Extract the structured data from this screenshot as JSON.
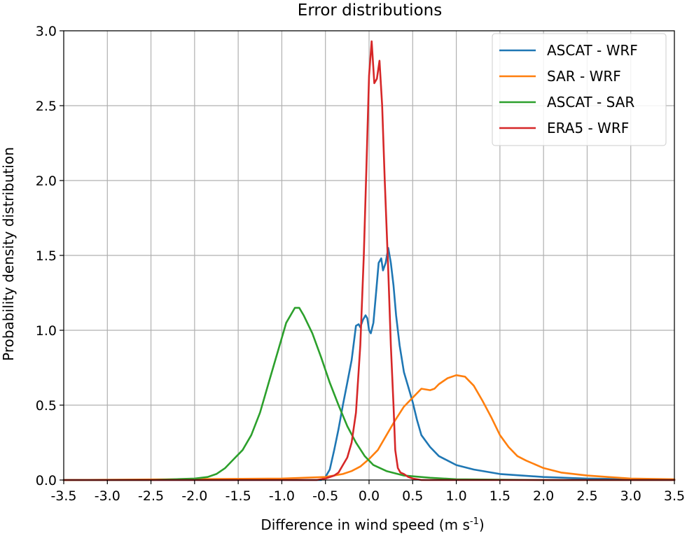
{
  "chart_data": {
    "type": "line",
    "title": "Error distributions",
    "xlabel_main": "Difference in wind speed (m s",
    "xlabel_sup": "-1",
    "xlabel_close": ")",
    "ylabel": "Probability density distribution",
    "xlim": [
      -3.5,
      3.5
    ],
    "ylim": [
      0,
      3.0
    ],
    "xticks": [
      -3.5,
      -3.0,
      -2.5,
      -2.0,
      -1.5,
      -1.0,
      -0.5,
      0.0,
      0.5,
      1.0,
      1.5,
      2.0,
      2.5,
      3.0,
      3.5
    ],
    "xtick_labels": [
      "-3.5",
      "-3.0",
      "-2.5",
      "-2.0",
      "-1.5",
      "-1.0",
      "-0.5",
      "0.0",
      "0.5",
      "1.0",
      "1.5",
      "2.0",
      "2.5",
      "3.0",
      "3.5"
    ],
    "yticks": [
      0.0,
      0.5,
      1.0,
      1.5,
      2.0,
      2.5,
      3.0
    ],
    "ytick_labels": [
      "0.0",
      "0.5",
      "1.0",
      "1.5",
      "2.0",
      "2.5",
      "3.0"
    ],
    "grid": true,
    "legend_position": "top-right",
    "series": [
      {
        "name": "ASCAT - WRF",
        "color": "#1f77b4",
        "points": [
          [
            -3.5,
            0
          ],
          [
            -0.55,
            0.0
          ],
          [
            -0.5,
            0.02
          ],
          [
            -0.45,
            0.07
          ],
          [
            -0.4,
            0.2
          ],
          [
            -0.35,
            0.34
          ],
          [
            -0.3,
            0.5
          ],
          [
            -0.25,
            0.65
          ],
          [
            -0.2,
            0.8
          ],
          [
            -0.15,
            1.03
          ],
          [
            -0.12,
            1.04
          ],
          [
            -0.1,
            1.02
          ],
          [
            -0.07,
            1.07
          ],
          [
            -0.04,
            1.1
          ],
          [
            -0.02,
            1.08
          ],
          [
            0.0,
            1.0
          ],
          [
            0.02,
            0.98
          ],
          [
            0.05,
            1.05
          ],
          [
            0.08,
            1.25
          ],
          [
            0.11,
            1.45
          ],
          [
            0.14,
            1.48
          ],
          [
            0.16,
            1.4
          ],
          [
            0.19,
            1.45
          ],
          [
            0.22,
            1.55
          ],
          [
            0.25,
            1.45
          ],
          [
            0.28,
            1.3
          ],
          [
            0.31,
            1.1
          ],
          [
            0.35,
            0.9
          ],
          [
            0.4,
            0.72
          ],
          [
            0.45,
            0.62
          ],
          [
            0.5,
            0.52
          ],
          [
            0.55,
            0.4
          ],
          [
            0.6,
            0.3
          ],
          [
            0.7,
            0.22
          ],
          [
            0.8,
            0.16
          ],
          [
            0.9,
            0.13
          ],
          [
            1.0,
            0.1
          ],
          [
            1.2,
            0.07
          ],
          [
            1.5,
            0.04
          ],
          [
            2.0,
            0.02
          ],
          [
            2.5,
            0.01
          ],
          [
            3.0,
            0.005
          ],
          [
            3.5,
            0.002
          ]
        ]
      },
      {
        "name": "SAR - WRF",
        "color": "#ff7f0e",
        "points": [
          [
            -3.5,
            0.0
          ],
          [
            -1.0,
            0.01
          ],
          [
            -0.5,
            0.02
          ],
          [
            -0.3,
            0.04
          ],
          [
            -0.2,
            0.06
          ],
          [
            -0.1,
            0.09
          ],
          [
            0.0,
            0.14
          ],
          [
            0.1,
            0.2
          ],
          [
            0.2,
            0.3
          ],
          [
            0.3,
            0.4
          ],
          [
            0.4,
            0.49
          ],
          [
            0.5,
            0.55
          ],
          [
            0.6,
            0.61
          ],
          [
            0.7,
            0.6
          ],
          [
            0.75,
            0.61
          ],
          [
            0.8,
            0.64
          ],
          [
            0.9,
            0.68
          ],
          [
            1.0,
            0.7
          ],
          [
            1.1,
            0.69
          ],
          [
            1.2,
            0.63
          ],
          [
            1.3,
            0.53
          ],
          [
            1.4,
            0.42
          ],
          [
            1.5,
            0.3
          ],
          [
            1.6,
            0.22
          ],
          [
            1.7,
            0.16
          ],
          [
            1.8,
            0.13
          ],
          [
            2.0,
            0.08
          ],
          [
            2.2,
            0.05
          ],
          [
            2.5,
            0.03
          ],
          [
            3.0,
            0.01
          ],
          [
            3.5,
            0.005
          ]
        ]
      },
      {
        "name": "ASCAT - SAR",
        "color": "#2ca02c",
        "points": [
          [
            -3.5,
            0.0
          ],
          [
            -2.5,
            0.0
          ],
          [
            -2.0,
            0.01
          ],
          [
            -1.85,
            0.02
          ],
          [
            -1.75,
            0.04
          ],
          [
            -1.65,
            0.08
          ],
          [
            -1.55,
            0.14
          ],
          [
            -1.45,
            0.2
          ],
          [
            -1.35,
            0.3
          ],
          [
            -1.25,
            0.45
          ],
          [
            -1.15,
            0.65
          ],
          [
            -1.05,
            0.85
          ],
          [
            -0.95,
            1.05
          ],
          [
            -0.9,
            1.1
          ],
          [
            -0.85,
            1.15
          ],
          [
            -0.8,
            1.15
          ],
          [
            -0.75,
            1.1
          ],
          [
            -0.65,
            0.98
          ],
          [
            -0.55,
            0.82
          ],
          [
            -0.45,
            0.65
          ],
          [
            -0.35,
            0.5
          ],
          [
            -0.25,
            0.36
          ],
          [
            -0.15,
            0.25
          ],
          [
            -0.05,
            0.16
          ],
          [
            0.05,
            0.1
          ],
          [
            0.2,
            0.06
          ],
          [
            0.4,
            0.03
          ],
          [
            0.7,
            0.015
          ],
          [
            1.0,
            0.005
          ],
          [
            2.0,
            0.0
          ],
          [
            3.5,
            0.0
          ]
        ]
      },
      {
        "name": "ERA5 - WRF",
        "color": "#d62728",
        "points": [
          [
            -3.5,
            0.0
          ],
          [
            -0.6,
            0.0
          ],
          [
            -0.5,
            0.01
          ],
          [
            -0.4,
            0.03
          ],
          [
            -0.35,
            0.05
          ],
          [
            -0.3,
            0.1
          ],
          [
            -0.25,
            0.15
          ],
          [
            -0.2,
            0.25
          ],
          [
            -0.15,
            0.45
          ],
          [
            -0.1,
            0.9
          ],
          [
            -0.06,
            1.5
          ],
          [
            -0.03,
            2.1
          ],
          [
            0.0,
            2.7
          ],
          [
            0.03,
            2.93
          ],
          [
            0.06,
            2.65
          ],
          [
            0.09,
            2.68
          ],
          [
            0.12,
            2.8
          ],
          [
            0.15,
            2.5
          ],
          [
            0.18,
            2.0
          ],
          [
            0.22,
            1.4
          ],
          [
            0.25,
            0.9
          ],
          [
            0.28,
            0.5
          ],
          [
            0.3,
            0.2
          ],
          [
            0.33,
            0.08
          ],
          [
            0.36,
            0.05
          ],
          [
            0.4,
            0.04
          ],
          [
            0.45,
            0.02
          ],
          [
            0.5,
            0.01
          ],
          [
            0.6,
            0.0
          ],
          [
            3.5,
            0.0
          ]
        ]
      }
    ]
  }
}
